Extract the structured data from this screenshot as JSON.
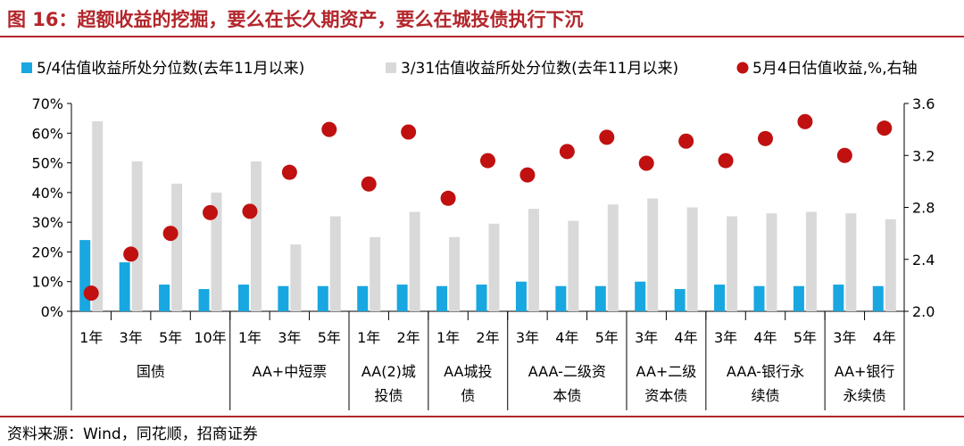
{
  "title": "图 16：超额收益的挖掘，要么在长久期资产，要么在城投债执行下沉",
  "source": "资料来源：Wind，同花顺，招商证券",
  "colors": {
    "series_a": "#18a7e0",
    "series_b": "#d9d9d9",
    "series_c": "#c01010",
    "title": "#b3262b"
  },
  "chart_data": {
    "type": "bar",
    "categories": [
      "1年",
      "3年",
      "5年",
      "10年",
      "1年",
      "3年",
      "5年",
      "1年",
      "2年",
      "1年",
      "2年",
      "3年",
      "4年",
      "5年",
      "3年",
      "4年",
      "3年",
      "4年",
      "5年",
      "3年",
      "4年"
    ],
    "groups": [
      {
        "label_lines": [
          "国债"
        ],
        "count": 4
      },
      {
        "label_lines": [
          "AA+中短票"
        ],
        "count": 3
      },
      {
        "label_lines": [
          "AA(2)城",
          "投债"
        ],
        "count": 2
      },
      {
        "label_lines": [
          "AA城投",
          "债"
        ],
        "count": 2
      },
      {
        "label_lines": [
          "AAA-二级资",
          "本债"
        ],
        "count": 3
      },
      {
        "label_lines": [
          "AA+二级",
          "资本债"
        ],
        "count": 2
      },
      {
        "label_lines": [
          "AAA-银行永",
          "续债"
        ],
        "count": 3
      },
      {
        "label_lines": [
          "AA+银行",
          "永续债"
        ],
        "count": 2
      }
    ],
    "series": [
      {
        "name": "5/4估值收益所处分位数(去年11月以来)",
        "type": "bar",
        "axis": "left",
        "values": [
          24,
          16.5,
          9,
          7.5,
          9,
          8.5,
          8.5,
          8.5,
          9,
          8.5,
          9,
          10,
          8.5,
          8.5,
          10,
          7.5,
          9,
          8.5,
          8.5,
          9,
          8.5
        ]
      },
      {
        "name": "3/31估值收益所处分位数(去年11月以来)",
        "type": "bar",
        "axis": "left",
        "values": [
          64,
          50.5,
          43,
          40,
          50.5,
          22.5,
          32,
          25,
          33.5,
          25,
          29.5,
          34.5,
          30.5,
          36,
          38,
          35,
          32,
          33,
          33.5,
          33,
          31
        ]
      },
      {
        "name": "5月4日估值收益,%,右轴",
        "type": "scatter",
        "axis": "right",
        "values": [
          2.14,
          2.44,
          2.6,
          2.76,
          2.77,
          3.07,
          3.4,
          2.98,
          3.38,
          2.87,
          3.16,
          3.05,
          3.23,
          3.34,
          3.14,
          3.31,
          3.16,
          3.33,
          3.46,
          3.2,
          3.41
        ]
      }
    ],
    "y_left": {
      "min": 0,
      "max": 70,
      "ticks": [
        "0%",
        "10%",
        "20%",
        "30%",
        "40%",
        "50%",
        "60%",
        "70%"
      ]
    },
    "y_right": {
      "min": 2.0,
      "max": 3.6,
      "ticks": [
        "2.0",
        "2.4",
        "2.8",
        "3.2",
        "3.6"
      ]
    },
    "legend_position": "top",
    "grid": false
  }
}
